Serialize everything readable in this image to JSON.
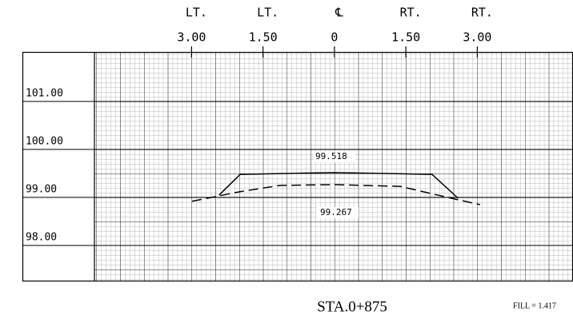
{
  "chart_data": {
    "type": "line",
    "title": "STA.0+875",
    "fill_label": "FILL = 1.417",
    "x_side_labels": [
      "LT.",
      "LT.",
      "℄",
      "RT.",
      "RT."
    ],
    "xlim": [
      -5.04,
      5.01
    ],
    "xticks": [
      {
        "value": -3,
        "label": "3.00"
      },
      {
        "value": -1.5,
        "label": "1.50"
      },
      0,
      {
        "value": 1.5,
        "label": "1.50"
      },
      {
        "value": 3,
        "label": "3.00"
      }
    ],
    "ylim": [
      97.25,
      102.03
    ],
    "yticks": [
      {
        "value": 98,
        "label": "98.00"
      },
      {
        "value": 99,
        "label": "99.00"
      },
      {
        "value": 100,
        "label": "100.00"
      },
      {
        "value": 101,
        "label": "101.00"
      }
    ],
    "annotations": [
      "99.518",
      "99.267"
    ],
    "grid": true,
    "series": [
      {
        "color": "#000000",
        "dash": false,
        "x": [
          -2.42,
          -1.98,
          0,
          2.05,
          2.6
        ],
        "values": [
          99.05,
          99.48,
          99.518,
          99.48,
          98.98
        ]
      },
      {
        "color": "#000000",
        "dash": true,
        "x": [
          -2.99,
          -1.98,
          -1.14,
          0,
          1.38,
          2.6,
          3.06
        ],
        "values": [
          98.92,
          99.12,
          99.25,
          99.267,
          99.23,
          98.95,
          98.85
        ]
      }
    ]
  }
}
